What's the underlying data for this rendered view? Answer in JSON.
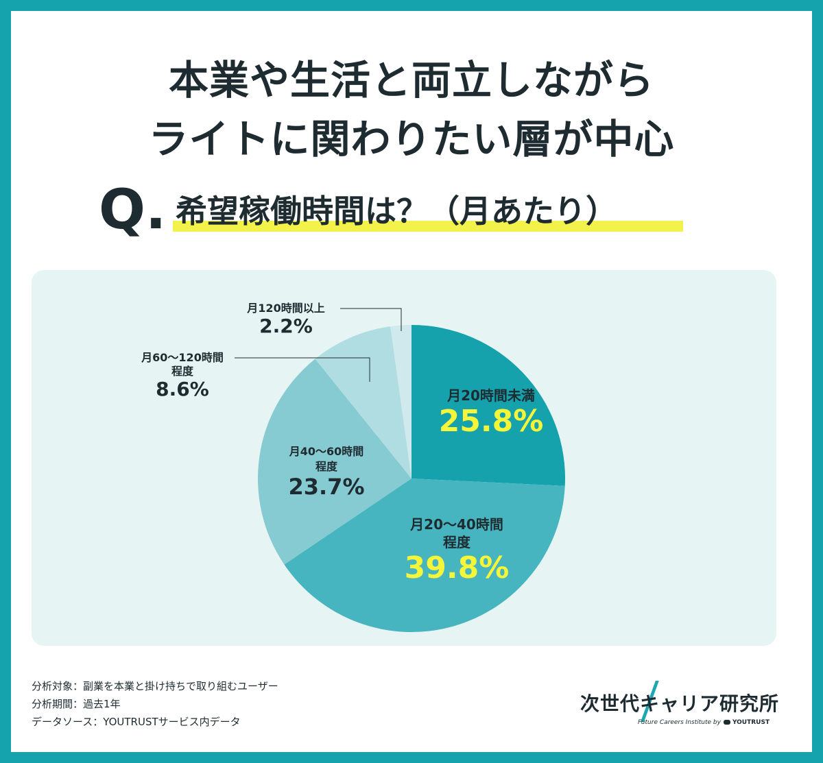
{
  "title": {
    "line1": "本業や生活と両立しながら",
    "line2": "ライトに関わりたい層が中心"
  },
  "question": {
    "mark": "Q.",
    "text": "希望稼働時間は？（月あたり）"
  },
  "colors": {
    "frame": "#15a3ad",
    "panel": "#e6f4f3",
    "highlight": "#f2f24a",
    "value_highlight": "#f5f53a",
    "text_dark": "#1e2b30"
  },
  "chart_data": {
    "type": "pie",
    "start": "12 o'clock",
    "direction": "clockwise",
    "slices": [
      {
        "label": "月20時間未満",
        "label_lines": [
          "月20時間未満"
        ],
        "value": 25.8,
        "display": "25.8%",
        "color": "#15a2ad"
      },
      {
        "label": "月20〜40時間程度",
        "label_lines": [
          "月20〜40時間",
          "程度"
        ],
        "value": 39.8,
        "display": "39.8%",
        "color": "#46b5c0"
      },
      {
        "label": "月40〜60時間程度",
        "label_lines": [
          "月40〜60時間",
          "程度"
        ],
        "value": 23.7,
        "display": "23.7%",
        "color": "#86cbd2"
      },
      {
        "label": "月60〜120時間程度",
        "label_lines": [
          "月60〜120時間",
          "程度"
        ],
        "value": 8.6,
        "display": "8.6%",
        "color": "#b0dde1"
      },
      {
        "label": "月120時間以上",
        "label_lines": [
          "月120時間以上"
        ],
        "value": 2.2,
        "display": "2.2%",
        "color": "#cfe9ec"
      }
    ]
  },
  "footer": {
    "line1": "分析対象：副業を本業と掛け持ちで取り組むユーザー",
    "line2": "分析期間：過去1年",
    "line3": "データソース：YOUTRUSTサービス内データ"
  },
  "logo": {
    "main": "次世代キャリア研究所",
    "sub_prefix": "Future Careers Institute by",
    "sub_brand": "YOUTRUST"
  }
}
